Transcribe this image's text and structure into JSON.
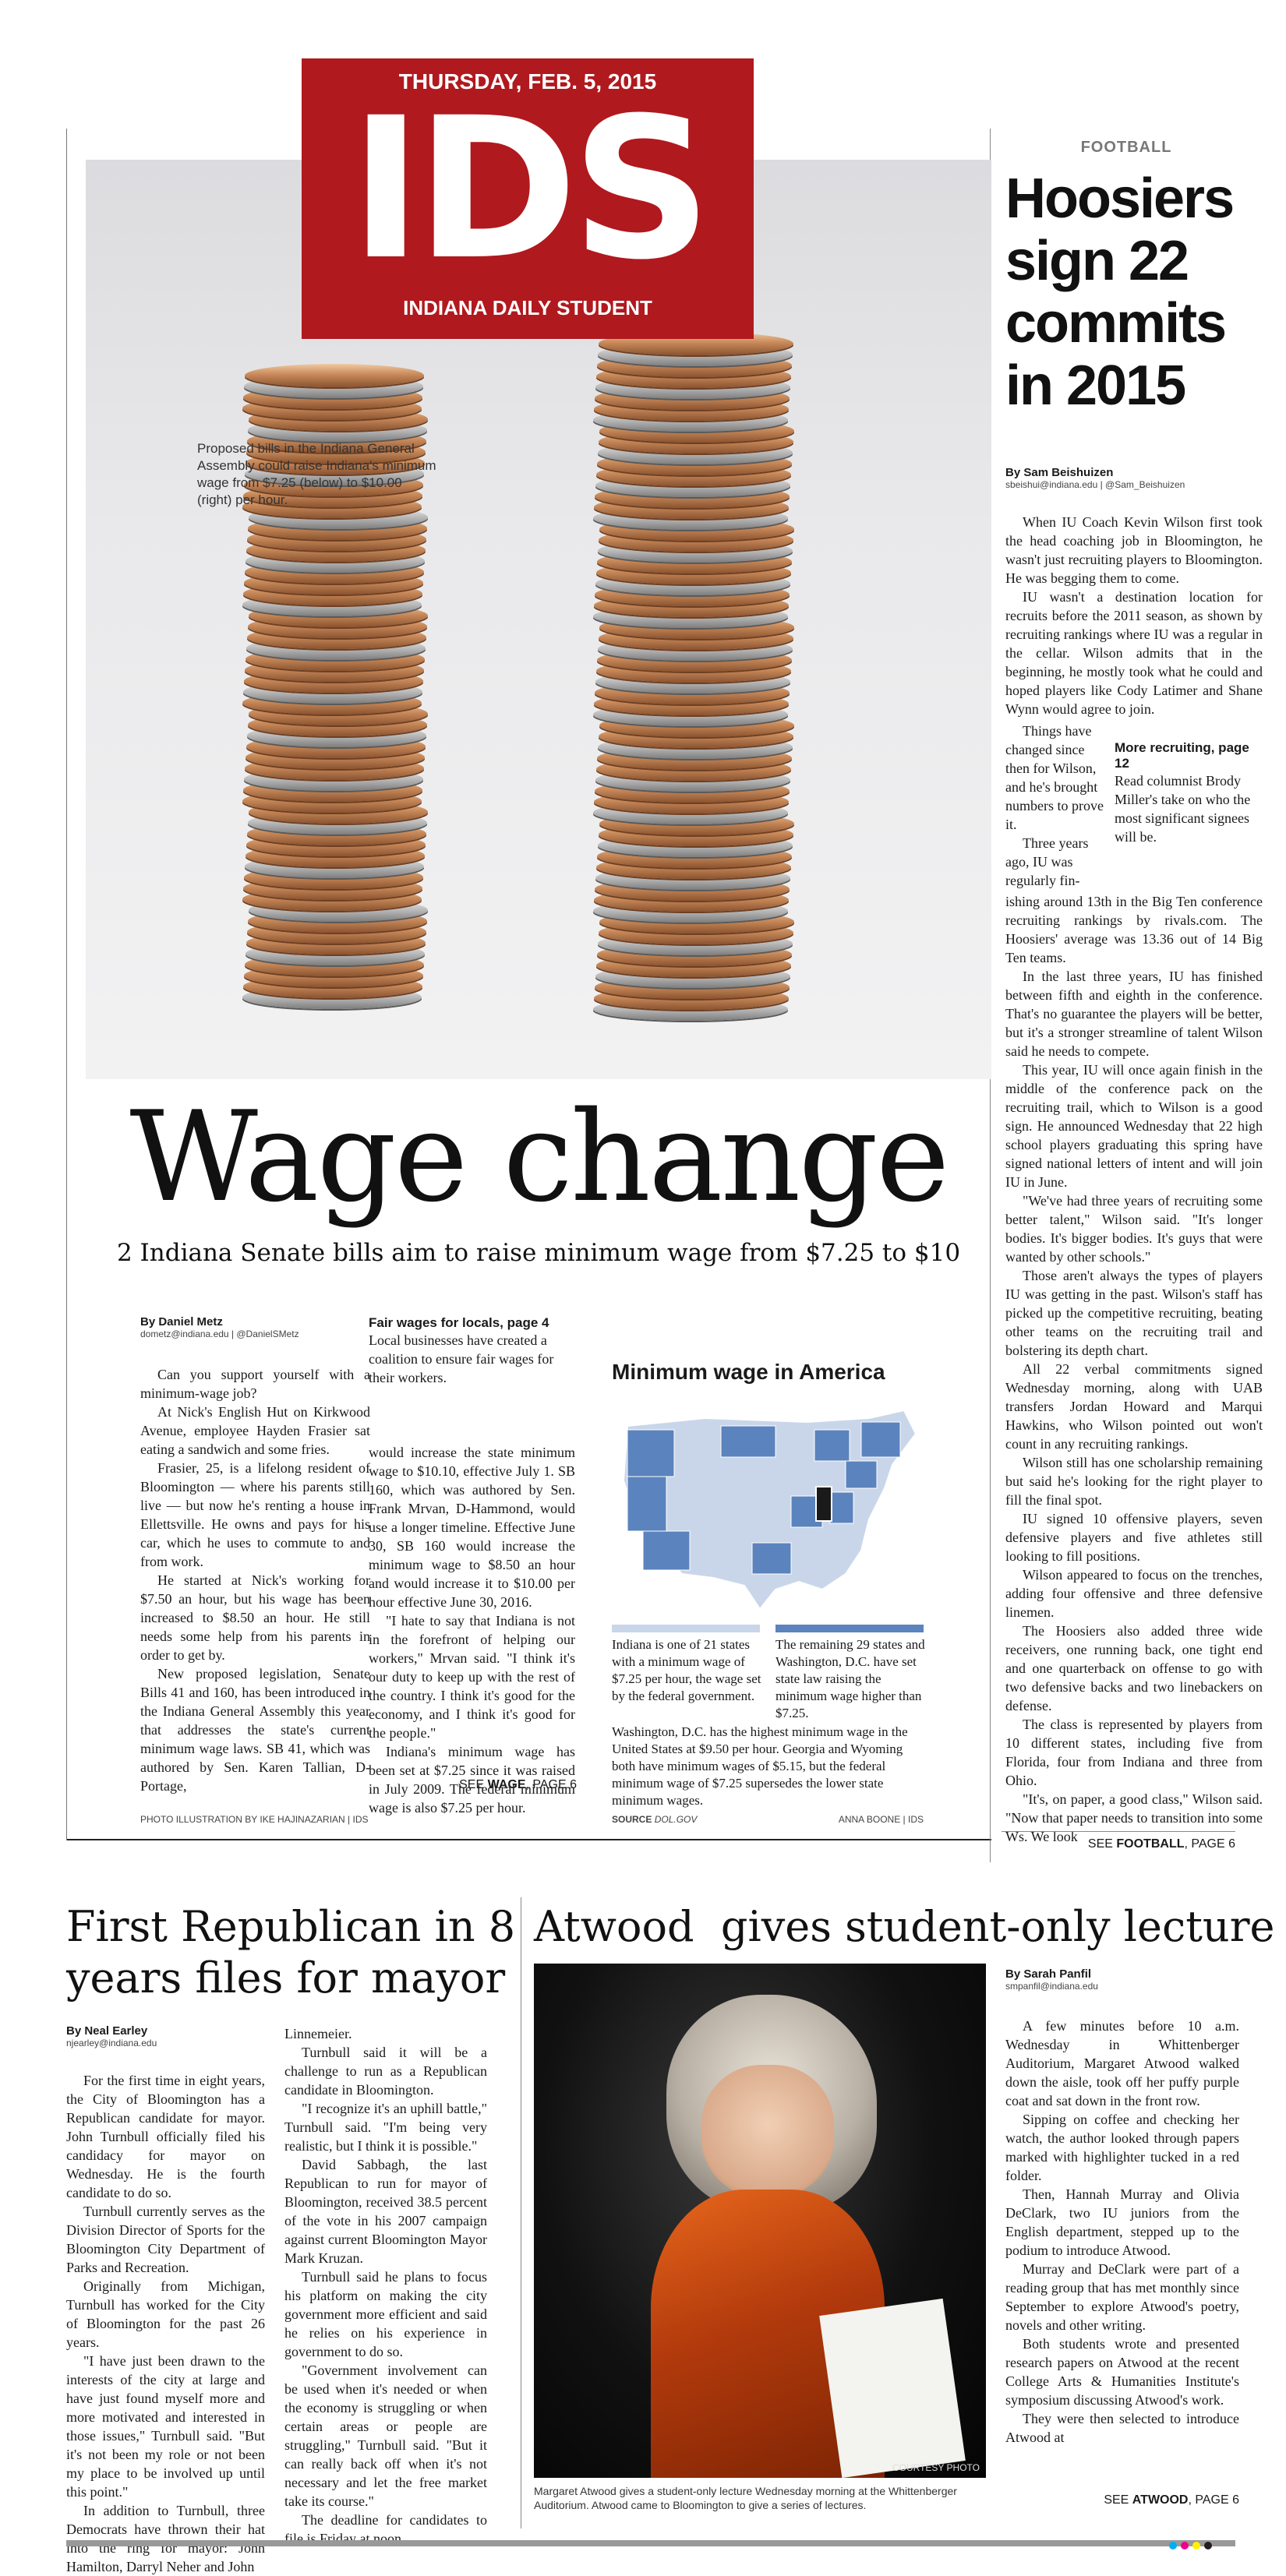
{
  "masthead": {
    "date": "THURSDAY, FEB. 5, 2015",
    "logo": "IDS",
    "name": "INDIANA DAILY STUDENT"
  },
  "lead": {
    "photo_caption": "Proposed bills in the Indiana General Assembly could raise Indiana's minimum wage from $7.25 (below) to $10.00 (right) per hour.",
    "headline": "Wage change",
    "deck": "2 Indiana Senate bills aim to raise minimum wage from $7.25 to $10",
    "byline_name": "By Daniel Metz",
    "byline_contact": "dometz@indiana.edu | @DanielSMetz",
    "col1": [
      "Can you support yourself with a minimum-wage job?",
      "At Nick's English Hut on Kirkwood Avenue, employee Hayden Frasier sat eating a sandwich and some fries.",
      "Frasier, 25, is a lifelong resident of Bloomington — where his parents still live — but now he's renting a house in Ellettsville. He owns and pays for his car, which he uses to commute to and from work.",
      "He started at Nick's working for $7.50 an hour, but his wage has been increased to $8.50 an hour. He still needs some help from his parents in order to get by.",
      "New proposed legislation, Senate Bills 41 and 160, has been introduced in the Indiana General Assembly this year that addresses the state's current minimum wage laws. SB 41, which was authored by Sen. Karen Tallian, D-Portage,"
    ],
    "promo_title": "Fair wages for locals, page 4",
    "promo_text": "Local businesses have created a coalition to ensure fair wages for their workers.",
    "col2": [
      "would increase the state minimum wage to $10.10, effective July 1. SB 160, which was authored by Sen. Frank Mrvan, D-Hammond, would use a longer timeline. Effective June 30, SB 160 would increase the minimum wage to $8.50 an hour and would increase it to $10.00 per hour effective June 30, 2016.",
      "\"I hate to say that Indiana is not in the forefront of helping our workers,\" Mrvan said. \"I think it's our duty to keep up with the rest of the country. I think it's good for the economy, and I think it's good for the people.\"",
      "Indiana's minimum wage has been set at $7.25 since it was raised in July 2009. The federal minimum wage is also $7.25 per hour."
    ],
    "see_prefix": "SEE",
    "see_keyword": "WAGE",
    "see_suffix": ", PAGE 6",
    "photo_credit": "PHOTO ILLUSTRATION BY IKE HAJINAZARIAN | IDS"
  },
  "sidebar": {
    "title": "Minimum wage in America",
    "legend1": "Indiana is one of 21 states with a minimum wage of $7.25 per hour, the wage set by the federal government.",
    "legend2": "The remaining 29 states and Washington, D.C. have set state law raising the minimum wage higher than $7.25.",
    "note": "Washington, D.C. has the highest minimum wage in the United States at $9.50 per hour. Georgia and Wyoming both have minimum wages of $5.15, but the federal minimum wage of $7.25 supersedes the lower state minimum wages.",
    "source_label": "SOURCE",
    "source_value": "DOL.GOV",
    "credit": "ANNA BOONE | IDS",
    "colors": {
      "light": "#c9d6ea",
      "dark": "#5b83bd",
      "indiana": "#1a1a1a"
    }
  },
  "football": {
    "label": "FOOTBALL",
    "headline": "Hoosiers sign 22 commits in 2015",
    "byline_name": "By Sam Beishuizen",
    "byline_contact": "sbeishui@indiana.edu | @Sam_Beishuizen",
    "para_top": [
      "When IU Coach Kevin Wilson first took the head coaching job in Bloomington, he wasn't just recruiting players to Bloomington. He was begging them to come.",
      "IU wasn't a destination location for recruits before the 2011 season, as shown by recruiting rankings where IU was a regular in the cellar. Wilson admits that in the beginning, he mostly took what he could and hoped players like Cody Latimer and Shane Wynn would agree to join."
    ],
    "para_narrow": "Things have changed since then for Wilson, and he's brought numbers to prove it.",
    "para_narrow2": "Three years ago, IU was regularly fin-",
    "promo_title": "More recruiting, page 12",
    "promo_text": "Read columnist Brody Miller's take on who the most significant signees will be.",
    "para_rest": [
      "ishing around 13th in the Big Ten conference recruiting rankings by rivals.com. The Hoosiers' average was 13.36 out of 14 Big Ten teams.",
      "In the last three years, IU has finished between fifth and eighth in the conference. That's no guarantee the players will be better, but it's a stronger streamline of talent Wilson said he needs to compete.",
      "This year, IU will once again finish in the middle of the conference pack on the recruiting trail, which to Wilson is a good sign. He announced Wednesday that 22 high school players graduating this spring have signed national letters of intent and will join IU in June.",
      "\"We've had three years of recruiting some better talent,\" Wilson said. \"It's longer bodies. It's bigger bodies. It's guys that were wanted by other schools.\"",
      "Those aren't always the types of players IU was getting in the past. Wilson's staff has picked up the competitive recruiting, beating other teams on the recruiting trail and bolstering its depth chart.",
      "All 22 verbal commitments signed Wednesday morning, along with UAB transfers Jordan Howard and Marqui Hawkins, who Wilson pointed out won't count in any recruiting rankings.",
      "Wilson still has one scholarship remaining but said he's looking for the right player to fill the final spot.",
      "IU signed 10 offensive players, seven defensive players and five athletes still looking to fill positions.",
      "Wilson appeared to focus on the trenches, adding four offensive and three defensive linemen.",
      "The Hoosiers also added three wide receivers, one running back, one tight end and one quarterback on offense to go with two defensive backs and two linebackers on defense.",
      "The class is represented by players from 10 different states, including five from Florida, four from Indiana and three from Ohio.",
      "\"It's, on paper, a good class,\" Wilson said. \"Now that paper needs to transition into some Ws. We look"
    ],
    "see_prefix": "SEE",
    "see_keyword": "FOOTBALL",
    "see_suffix": ", PAGE 6"
  },
  "mayor": {
    "headline": "First Republican in 8 years files for mayor",
    "byline_name": "By Neal Earley",
    "byline_contact": "njearley@indiana.edu",
    "col1": [
      "For the first time in eight years, the City of Bloomington has a Republican candidate for mayor. John Turnbull officially filed his candidacy for mayor on Wednesday. He is the fourth candidate to do so.",
      "Turnbull currently serves as the Division Director of Sports for the Bloomington City Department of Parks and Recreation.",
      "Originally from Michigan, Turnbull has worked for the City of Bloomington for the past 26 years.",
      "\"I have just been drawn to the interests of the city at large and have just found myself more and more motivated and interested in those issues,\" Turnbull said. \"But it's not been my role or not been my place to be involved up until this point.\"",
      "In addition to Turnbull, three Democrats have thrown their hat into the ring for mayor: John Hamilton, Darryl Neher and John"
    ],
    "col2_cont": "Linnemeier.",
    "col2": [
      "Turnbull said it will be a challenge to run as a Republican candidate in Bloomington.",
      "\"I recognize it's an uphill battle,\" Turnbull said. \"I'm being very realistic, but I think it is possible.\"",
      "David Sabbagh, the last Republican to run for mayor of Bloomington, received 38.5 percent of the vote in his 2007 campaign against current Bloomington Mayor Mark Kruzan.",
      "Turnbull said he plans to focus his platform on making the city government more efficient and said he relies on his experience in government to do so.",
      "\"Government involvement can be used when it's needed or when the economy is struggling or when certain areas or people are struggling,\" Turnbull said. \"But it can really back off when it's not necessary and let the free market take its course.\"",
      "The deadline for candidates to file is Friday at noon."
    ]
  },
  "atwood": {
    "headline": "Atwood  gives student-only lecture",
    "byline_name": "By Sarah Panfil",
    "byline_contact": "smpanfil@indiana.edu",
    "photo_credit": "COURTESY PHOTO",
    "caption": "Margaret Atwood gives a student-only lecture Wednesday morning at the Whittenberger Auditorium. Atwood came to Bloomington to give a series of lectures.",
    "paras": [
      "A few minutes before 10 a.m. Wednesday in Whittenberger Auditorium, Margaret Atwood walked down the aisle, took off her puffy purple coat and sat down in the front row.",
      "Sipping on coffee and checking her watch, the author looked through papers marked with highlighter tucked in a red folder.",
      "Then, Hannah Murray and Olivia DeClark, two IU juniors from the English department, stepped up to the podium to introduce Atwood.",
      "Murray and DeClark were part of a reading group that has met monthly since September to explore Atwood's poetry, novels and other writing.",
      "Both students wrote and presented research papers on Atwood at the recent College Arts & Humanities Institute's symposium discussing Atwood's work.",
      "They were then selected to introduce Atwood at"
    ],
    "see_prefix": "SEE",
    "see_keyword": "ATWOOD",
    "see_suffix": ", PAGE 6"
  }
}
